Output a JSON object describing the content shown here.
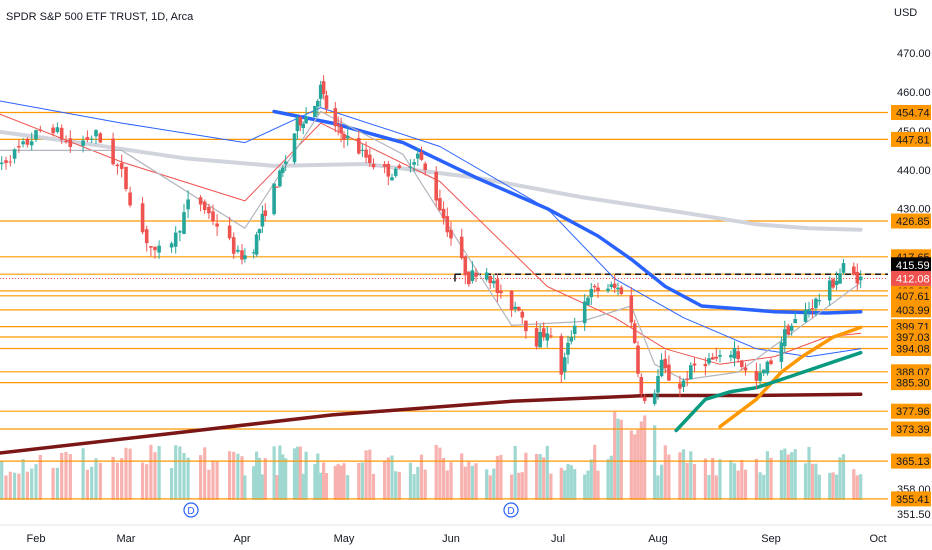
{
  "chart_data": {
    "type": "candlestick",
    "title": "SPDR S&P 500 ETF TRUST, 1D, Arca",
    "currency": "USD",
    "x_ticks": [
      "Feb",
      "Mar",
      "Apr",
      "May",
      "Jun",
      "Jul",
      "Aug",
      "Sep",
      "Oct"
    ],
    "y_ticks": [
      470.0,
      460.0,
      450.0,
      440.0,
      430.0,
      358.0,
      351.5
    ],
    "ylim": [
      350.5,
      478.0
    ],
    "horizontal_levels": [
      454.74,
      447.81,
      426.85,
      417.65,
      413.18,
      408.88,
      407.61,
      403.99,
      399.71,
      397.03,
      394.08,
      388.07,
      385.3,
      377.96,
      373.39,
      365.13,
      355.41
    ],
    "last_price": 412.08,
    "moving_average_value": 415.59,
    "dividend_markers": [
      "D",
      "D"
    ],
    "colors": {
      "up": "#26a69a",
      "down": "#ef5350",
      "level_line": "#ff9800",
      "ma_200": "#d1d4dc",
      "ma_blue": "#2962ff",
      "ma_long": "#7b1616",
      "ma_orange": "#ff9800",
      "ma_green": "#089981",
      "last_price_bg": "#ef5350",
      "ma_label_bg": "#000000"
    }
  }
}
